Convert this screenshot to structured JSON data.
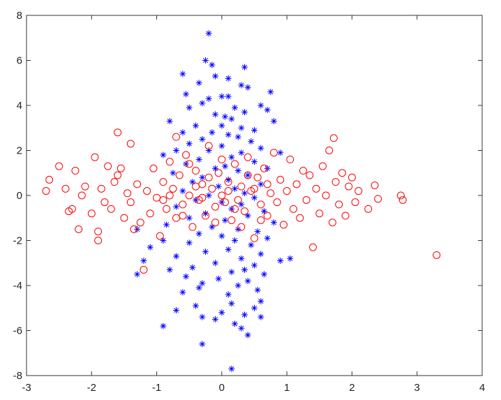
{
  "chart_data": {
    "type": "scatter",
    "title": "",
    "xlabel": "",
    "ylabel": "",
    "xlim": [
      -3,
      4
    ],
    "ylim": [
      -8,
      8
    ],
    "xticks": [
      -3,
      -2,
      -1,
      0,
      1,
      2,
      3,
      4
    ],
    "yticks": [
      -8,
      -6,
      -4,
      -2,
      0,
      2,
      4,
      6,
      8
    ],
    "xtick_labels": [
      "-3",
      "-2",
      "-1",
      "0",
      "1",
      "2",
      "3",
      "4"
    ],
    "ytick_labels": [
      "-8",
      "-6",
      "-4",
      "-2",
      "0",
      "2",
      "4",
      "6",
      "8"
    ],
    "grid": false,
    "legend": "none",
    "series": [
      {
        "marker": "asterisk",
        "color": "#0000ff",
        "points": [
          [
            -0.2,
            7.2
          ],
          [
            -0.25,
            6.0
          ],
          [
            -0.15,
            5.8
          ],
          [
            0.35,
            5.7
          ],
          [
            -0.6,
            5.4
          ],
          [
            -0.1,
            5.3
          ],
          [
            0.1,
            5.2
          ],
          [
            -0.35,
            5.0
          ],
          [
            0.3,
            4.9
          ],
          [
            -0.55,
            4.5
          ],
          [
            0.0,
            4.4
          ],
          [
            0.1,
            4.4
          ],
          [
            0.75,
            4.6
          ],
          [
            0.4,
            4.8
          ],
          [
            -0.2,
            4.3
          ],
          [
            0.6,
            4.0
          ],
          [
            -0.3,
            4.1
          ],
          [
            0.2,
            3.9
          ],
          [
            0.35,
            3.7
          ],
          [
            -0.5,
            3.9
          ],
          [
            0.7,
            3.8
          ],
          [
            -0.1,
            3.6
          ],
          [
            0.05,
            3.5
          ],
          [
            0.15,
            3.4
          ],
          [
            -0.8,
            3.3
          ],
          [
            0.8,
            3.3
          ],
          [
            -0.4,
            3.1
          ],
          [
            0.3,
            3.0
          ],
          [
            0.0,
            3.1
          ],
          [
            -0.15,
            2.8
          ],
          [
            0.5,
            2.9
          ],
          [
            -0.6,
            2.8
          ],
          [
            0.1,
            2.7
          ],
          [
            0.25,
            2.6
          ],
          [
            -0.3,
            2.5
          ],
          [
            0.45,
            2.4
          ],
          [
            -0.5,
            2.3
          ],
          [
            0.0,
            2.2
          ],
          [
            0.6,
            2.1
          ],
          [
            -0.7,
            2.0
          ],
          [
            -0.2,
            2.0
          ],
          [
            0.3,
            1.9
          ],
          [
            0.9,
            1.9
          ],
          [
            -0.9,
            1.8
          ],
          [
            0.15,
            1.7
          ],
          [
            -0.35,
            1.6
          ],
          [
            0.5,
            1.5
          ],
          [
            -0.55,
            1.4
          ],
          [
            0.05,
            1.3
          ],
          [
            0.7,
            1.2
          ],
          [
            -0.1,
            1.2
          ],
          [
            0.25,
            1.1
          ],
          [
            -0.75,
            1.0
          ],
          [
            0.4,
            0.9
          ],
          [
            -0.3,
            0.8
          ],
          [
            0.1,
            0.7
          ],
          [
            -0.45,
            0.6
          ],
          [
            0.6,
            0.5
          ],
          [
            -0.05,
            0.4
          ],
          [
            0.2,
            0.3
          ],
          [
            -0.6,
            0.2
          ],
          [
            0.35,
            0.1
          ],
          [
            -0.2,
            0.0
          ],
          [
            0.5,
            -0.1
          ],
          [
            -0.4,
            -0.2
          ],
          [
            0.0,
            -0.3
          ],
          [
            0.3,
            -0.4
          ],
          [
            -0.7,
            -0.5
          ],
          [
            0.15,
            -0.6
          ],
          [
            0.65,
            -0.7
          ],
          [
            -0.25,
            -0.8
          ],
          [
            0.4,
            -0.9
          ],
          [
            -0.5,
            -1.0
          ],
          [
            0.05,
            -1.1
          ],
          [
            0.8,
            -1.2
          ],
          [
            -0.85,
            -1.3
          ],
          [
            -0.15,
            -1.4
          ],
          [
            0.25,
            -1.5
          ],
          [
            -1.3,
            -1.5
          ],
          [
            0.55,
            -1.6
          ],
          [
            -0.35,
            -1.7
          ],
          [
            0.0,
            -1.8
          ],
          [
            0.7,
            -1.9
          ],
          [
            -0.9,
            -2.0
          ],
          [
            0.2,
            -2.0
          ],
          [
            -0.5,
            -2.1
          ],
          [
            0.45,
            -2.2
          ],
          [
            -1.1,
            -2.3
          ],
          [
            0.1,
            -2.4
          ],
          [
            -0.25,
            -2.5
          ],
          [
            0.6,
            -2.6
          ],
          [
            -0.7,
            -2.7
          ],
          [
            0.3,
            -2.8
          ],
          [
            1.05,
            -2.8
          ],
          [
            0.9,
            -2.9
          ],
          [
            -1.2,
            -2.9
          ],
          [
            -0.1,
            -3.0
          ],
          [
            0.5,
            -3.1
          ],
          [
            -0.45,
            -3.2
          ],
          [
            0.35,
            -3.3
          ],
          [
            -0.8,
            -3.3
          ],
          [
            0.15,
            -3.4
          ],
          [
            -1.3,
            -3.5
          ],
          [
            0.65,
            -3.5
          ],
          [
            -0.55,
            -3.6
          ],
          [
            -0.05,
            -3.7
          ],
          [
            0.4,
            -3.8
          ],
          [
            -0.3,
            -3.9
          ],
          [
            0.25,
            -4.0
          ],
          [
            -0.35,
            -4.1
          ],
          [
            0.55,
            -4.2
          ],
          [
            -0.6,
            -4.3
          ],
          [
            0.1,
            -4.4
          ],
          [
            0.6,
            -4.7
          ],
          [
            -0.4,
            -4.9
          ],
          [
            0.15,
            -4.8
          ],
          [
            -0.7,
            -5.1
          ],
          [
            0.5,
            -5.0
          ],
          [
            0.0,
            -5.2
          ],
          [
            0.35,
            -5.3
          ],
          [
            -0.3,
            -5.4
          ],
          [
            0.6,
            -5.4
          ],
          [
            -0.1,
            -5.5
          ],
          [
            0.2,
            -5.7
          ],
          [
            -0.9,
            -5.8
          ],
          [
            0.3,
            -5.9
          ],
          [
            0.4,
            -6.2
          ],
          [
            -0.3,
            -6.6
          ],
          [
            0.15,
            -7.7
          ]
        ]
      },
      {
        "marker": "circle",
        "color": "#ff0000",
        "points": [
          [
            -2.7,
            0.2
          ],
          [
            -2.65,
            0.7
          ],
          [
            -2.5,
            1.3
          ],
          [
            -2.4,
            0.3
          ],
          [
            -2.35,
            -0.7
          ],
          [
            -2.3,
            -0.6
          ],
          [
            -2.25,
            1.1
          ],
          [
            -2.2,
            -1.5
          ],
          [
            -2.15,
            0.0
          ],
          [
            -2.1,
            0.4
          ],
          [
            -2.0,
            -0.8
          ],
          [
            -1.95,
            1.7
          ],
          [
            -1.9,
            -1.6
          ],
          [
            -1.9,
            -2.0
          ],
          [
            -1.85,
            0.3
          ],
          [
            -1.8,
            -0.3
          ],
          [
            -1.75,
            1.3
          ],
          [
            -1.7,
            -0.6
          ],
          [
            -1.65,
            0.6
          ],
          [
            -1.6,
            0.9
          ],
          [
            -1.6,
            2.8
          ],
          [
            -1.55,
            1.2
          ],
          [
            -1.5,
            -1.0
          ],
          [
            -1.45,
            0.1
          ],
          [
            -1.4,
            2.3
          ],
          [
            -1.4,
            -0.3
          ],
          [
            -1.35,
            -1.5
          ],
          [
            -1.3,
            0.5
          ],
          [
            -1.25,
            -1.2
          ],
          [
            -1.2,
            -3.3
          ],
          [
            -1.15,
            0.2
          ],
          [
            -1.1,
            -0.8
          ],
          [
            -1.05,
            1.2
          ],
          [
            -1.0,
            -0.1
          ],
          [
            -0.95,
            -1.8
          ],
          [
            -0.9,
            0.6
          ],
          [
            -0.85,
            -0.6
          ],
          [
            -0.8,
            1.5
          ],
          [
            -0.75,
            0.3
          ],
          [
            -0.7,
            2.6
          ],
          [
            -0.7,
            -1.0
          ],
          [
            -0.65,
            0.9
          ],
          [
            -0.6,
            -0.4
          ],
          [
            -0.55,
            1.8
          ],
          [
            -0.5,
            0.0
          ],
          [
            -0.45,
            -1.4
          ],
          [
            -0.4,
            1.1
          ],
          [
            -0.35,
            -0.2
          ],
          [
            -0.3,
            0.5
          ],
          [
            -0.25,
            -0.9
          ],
          [
            -0.2,
            2.2
          ],
          [
            -0.15,
            0.3
          ],
          [
            -0.1,
            -0.5
          ],
          [
            -0.05,
            1.0
          ],
          [
            0.0,
            0.0
          ],
          [
            0.05,
            -0.3
          ],
          [
            0.1,
            0.6
          ],
          [
            0.15,
            -1.1
          ],
          [
            0.2,
            1.4
          ],
          [
            0.25,
            -0.2
          ],
          [
            0.3,
            0.4
          ],
          [
            0.35,
            -0.7
          ],
          [
            0.4,
            1.7
          ],
          [
            0.45,
            0.2
          ],
          [
            0.5,
            -1.9
          ],
          [
            0.55,
            0.8
          ],
          [
            0.6,
            -0.4
          ],
          [
            0.65,
            1.2
          ],
          [
            0.7,
            -0.9
          ],
          [
            0.75,
            0.1
          ],
          [
            0.8,
            1.9
          ],
          [
            0.85,
            -0.3
          ],
          [
            0.9,
            0.7
          ],
          [
            0.95,
            -1.3
          ],
          [
            1.0,
            0.2
          ],
          [
            1.05,
            1.6
          ],
          [
            1.1,
            -0.6
          ],
          [
            1.15,
            0.5
          ],
          [
            1.2,
            -1.0
          ],
          [
            1.25,
            1.1
          ],
          [
            1.3,
            -0.2
          ],
          [
            1.35,
            0.9
          ],
          [
            1.4,
            -2.3
          ],
          [
            1.45,
            0.3
          ],
          [
            1.5,
            -0.8
          ],
          [
            1.55,
            1.3
          ],
          [
            1.6,
            0.0
          ],
          [
            1.65,
            2.0
          ],
          [
            1.7,
            -1.2
          ],
          [
            1.72,
            2.55
          ],
          [
            1.75,
            0.6
          ],
          [
            1.8,
            -0.4
          ],
          [
            1.85,
            1.0
          ],
          [
            1.9,
            -0.9
          ],
          [
            1.95,
            0.4
          ],
          [
            2.0,
            0.8
          ],
          [
            2.05,
            -0.3
          ],
          [
            2.1,
            0.2
          ],
          [
            2.25,
            -0.6
          ],
          [
            2.35,
            0.45
          ],
          [
            2.4,
            -0.15
          ],
          [
            2.75,
            0.0
          ],
          [
            2.78,
            -0.2
          ],
          [
            3.3,
            -2.65
          ],
          [
            -0.6,
            -0.9
          ],
          [
            -0.2,
            0.8
          ],
          [
            0.3,
            -1.4
          ],
          [
            0.1,
            0.2
          ],
          [
            -0.4,
            0.4
          ],
          [
            0.5,
            0.3
          ],
          [
            -0.1,
            -1.2
          ],
          [
            0.7,
            0.5
          ],
          [
            -0.8,
            0.0
          ],
          [
            0.2,
            -0.6
          ],
          [
            -0.3,
            -0.1
          ],
          [
            0.4,
            0.9
          ],
          [
            -0.5,
            1.4
          ],
          [
            0.6,
            -1.1
          ],
          [
            -0.9,
            -0.2
          ],
          [
            0.0,
            1.6
          ]
        ]
      }
    ]
  }
}
